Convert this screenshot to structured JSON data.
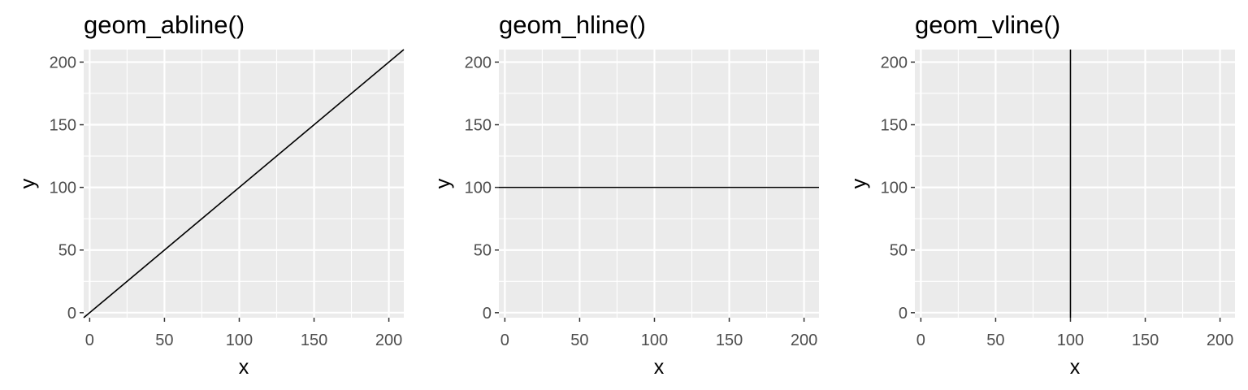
{
  "chart_data": [
    {
      "type": "line",
      "title": "geom_abline()",
      "xlabel": "x",
      "ylabel": "y",
      "xlim": [
        -4,
        210
      ],
      "ylim": [
        -4,
        210
      ],
      "xticks": [
        0,
        50,
        100,
        150,
        200
      ],
      "yticks": [
        0,
        50,
        100,
        150,
        200
      ],
      "grid": true,
      "reference_line": {
        "kind": "abline",
        "slope": 1,
        "intercept": 0
      }
    },
    {
      "type": "line",
      "title": "geom_hline()",
      "xlabel": "x",
      "ylabel": "y",
      "xlim": [
        -4,
        210
      ],
      "ylim": [
        -4,
        210
      ],
      "xticks": [
        0,
        50,
        100,
        150,
        200
      ],
      "yticks": [
        0,
        50,
        100,
        150,
        200
      ],
      "grid": true,
      "reference_line": {
        "kind": "hline",
        "yintercept": 100
      }
    },
    {
      "type": "line",
      "title": "geom_vline()",
      "xlabel": "x",
      "ylabel": "y",
      "xlim": [
        -4,
        210
      ],
      "ylim": [
        -4,
        210
      ],
      "xticks": [
        0,
        50,
        100,
        150,
        200
      ],
      "yticks": [
        0,
        50,
        100,
        150,
        200
      ],
      "grid": true,
      "reference_line": {
        "kind": "vline",
        "xintercept": 100
      }
    }
  ],
  "colors": {
    "panel_background": "#ebebeb",
    "grid_line": "#ffffff",
    "tick_text": "#4d4d4d",
    "tick_mark": "#333333",
    "reference_line": "#000000"
  }
}
